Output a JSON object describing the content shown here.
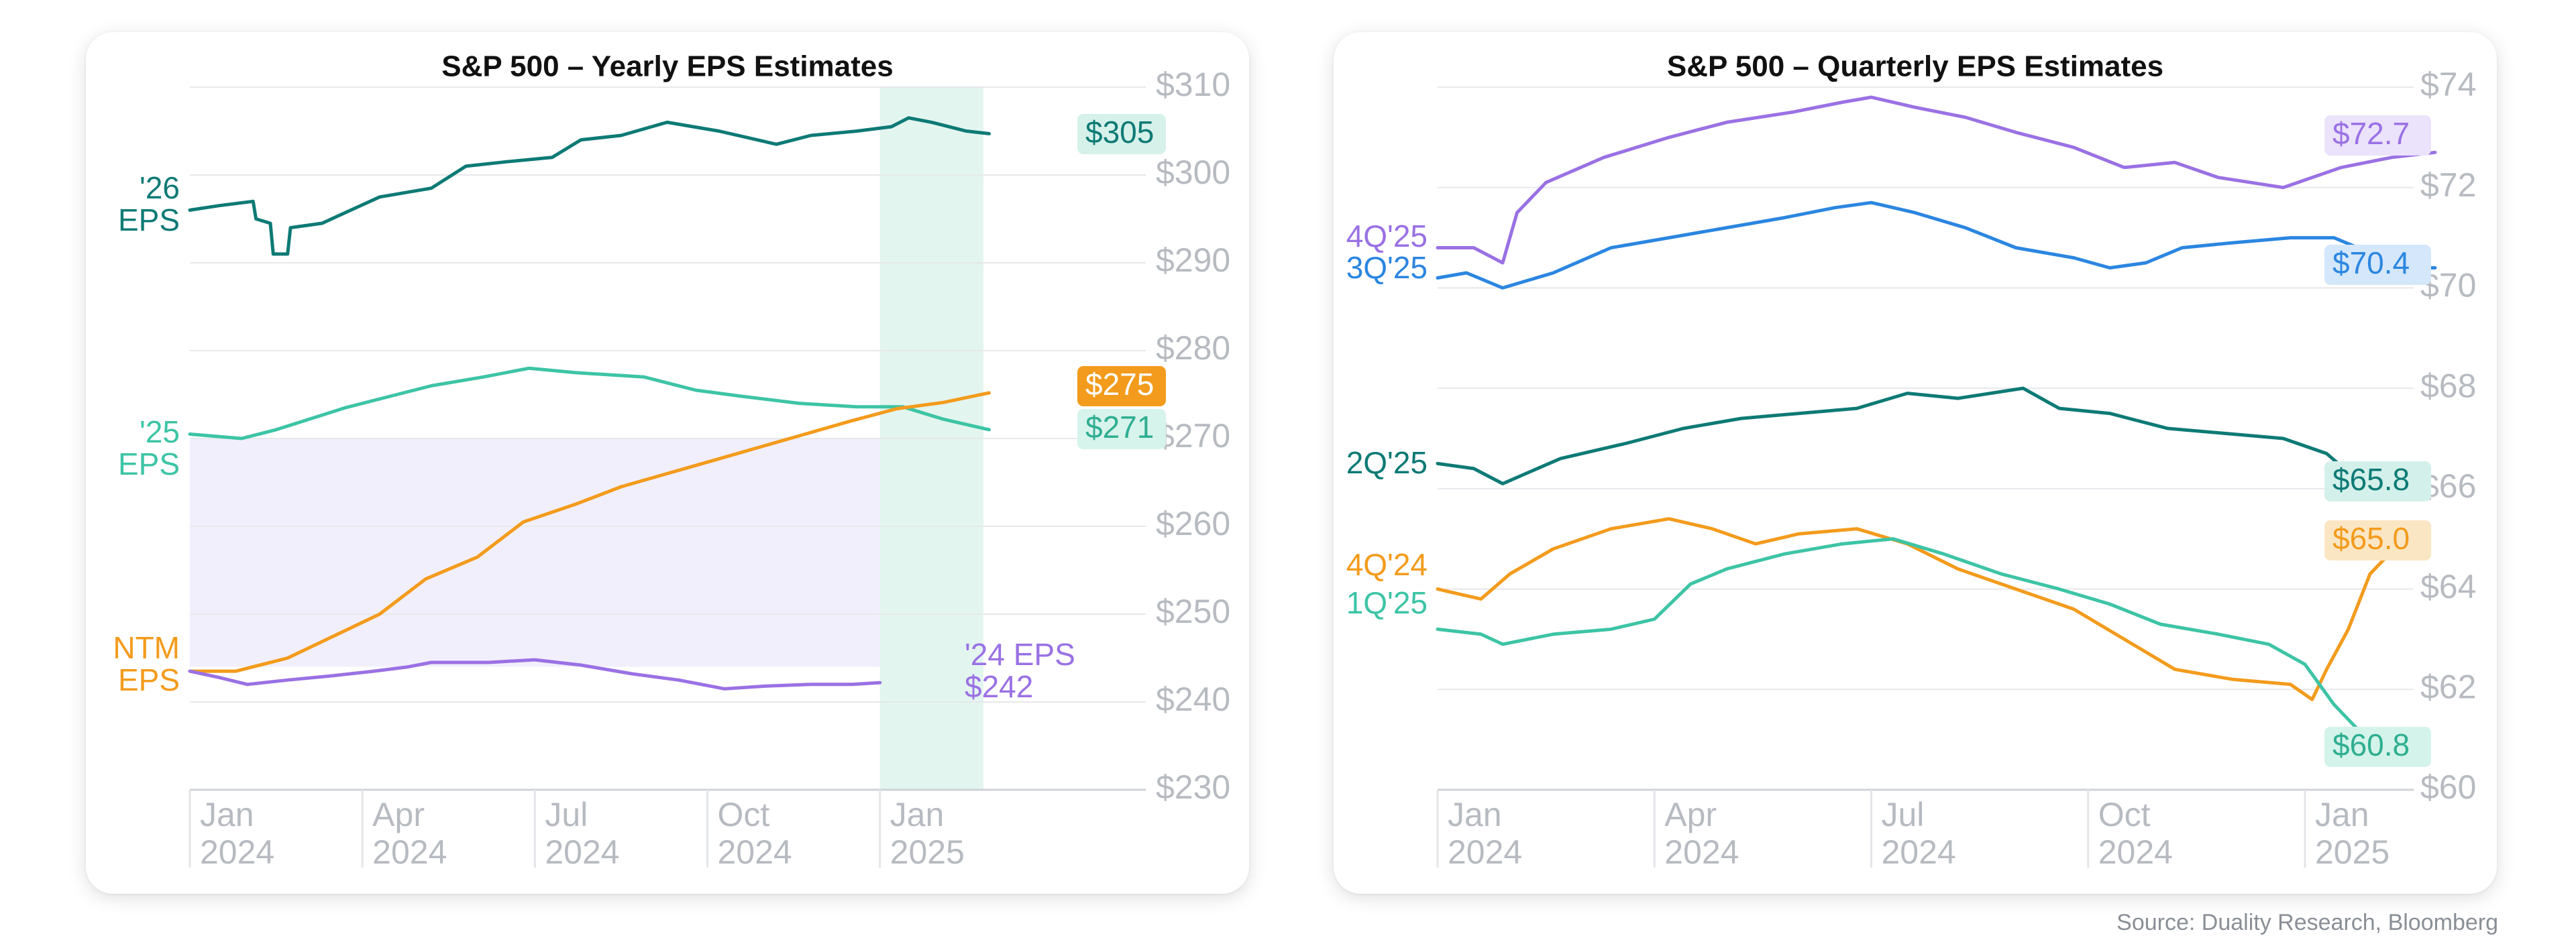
{
  "source": "Source: Duality Research, Bloomberg",
  "chart_data": [
    {
      "id": "yearly",
      "type": "line",
      "title": "S&P 500 – Yearly EPS Estimates",
      "ylim": [
        230,
        310
      ],
      "y_ticks": [
        230,
        240,
        250,
        260,
        270,
        280,
        290,
        300,
        310
      ],
      "y_tick_labels": [
        "$230",
        "$240",
        "$250",
        "$260",
        "$270",
        "$280",
        "$290",
        "$300",
        "$310"
      ],
      "x_domain": [
        0,
        16.6
      ],
      "x_ticks": [
        {
          "pos": 0,
          "line1": "Jan",
          "line2": "2024"
        },
        {
          "pos": 3,
          "line1": "Apr",
          "line2": "2024"
        },
        {
          "pos": 6,
          "line1": "Jul",
          "line2": "2024"
        },
        {
          "pos": 9,
          "line1": "Oct",
          "line2": "2024"
        },
        {
          "pos": 12,
          "line1": "Jan",
          "line2": "2025"
        }
      ],
      "grid": true,
      "shaded_regions": [
        {
          "x": [
            12.0,
            13.8
          ],
          "y": [
            230,
            310
          ],
          "color": "#d9f2ea"
        },
        {
          "x": [
            0.0,
            12.0
          ],
          "y": [
            244,
            270
          ],
          "color": "#eeeafb"
        }
      ],
      "series": [
        {
          "name": "'26 EPS",
          "color": "#0d7a75",
          "label_lines": [
            "'26",
            "EPS"
          ],
          "end_badge": "$305",
          "badge_bg": "#d6f1ea",
          "badge_text": "#0d7a75",
          "points": [
            [
              0,
              296
            ],
            [
              0.5,
              296.5
            ],
            [
              1.1,
              297
            ],
            [
              1.15,
              295
            ],
            [
              1.4,
              294.5
            ],
            [
              1.45,
              291
            ],
            [
              1.7,
              291
            ],
            [
              1.75,
              294
            ],
            [
              2.3,
              294.5
            ],
            [
              2.8,
              296
            ],
            [
              3.3,
              297.5
            ],
            [
              4.2,
              298.5
            ],
            [
              4.8,
              301
            ],
            [
              5.5,
              301.5
            ],
            [
              6.3,
              302
            ],
            [
              6.8,
              304
            ],
            [
              7.5,
              304.5
            ],
            [
              8.3,
              306
            ],
            [
              9.2,
              305
            ],
            [
              10.2,
              303.5
            ],
            [
              10.8,
              304.5
            ],
            [
              11.6,
              305
            ],
            [
              12.2,
              305.5
            ],
            [
              12.5,
              306.5
            ],
            [
              12.9,
              306
            ],
            [
              13.5,
              305
            ],
            [
              13.9,
              304.7
            ]
          ]
        },
        {
          "name": "'25 EPS",
          "color": "#3dc4a5",
          "label_lines": [
            "'25",
            "EPS"
          ],
          "end_badge": "$271",
          "badge_bg": "#d6f3ec",
          "badge_text": "#2fae91",
          "points": [
            [
              0,
              270.5
            ],
            [
              0.9,
              270
            ],
            [
              1.5,
              271
            ],
            [
              2.7,
              273.5
            ],
            [
              3.6,
              275
            ],
            [
              4.2,
              276
            ],
            [
              5.1,
              277
            ],
            [
              5.9,
              278
            ],
            [
              6.7,
              277.5
            ],
            [
              7.9,
              277
            ],
            [
              8.8,
              275.5
            ],
            [
              9.6,
              274.8
            ],
            [
              10.6,
              274
            ],
            [
              11.6,
              273.6
            ],
            [
              12.4,
              273.6
            ],
            [
              13.1,
              272.2
            ],
            [
              13.9,
              271
            ]
          ]
        },
        {
          "name": "NTM EPS",
          "color": "#f39b1c",
          "label_lines": [
            "NTM",
            "EPS"
          ],
          "end_badge": "$275",
          "badge_bg": "#f39b1c",
          "badge_text": "#ffffff",
          "points": [
            [
              0,
              243.5
            ],
            [
              0.8,
              243.5
            ],
            [
              1.7,
              245
            ],
            [
              2.5,
              247.5
            ],
            [
              3.3,
              250
            ],
            [
              4.1,
              254
            ],
            [
              5.0,
              256.5
            ],
            [
              5.8,
              260.5
            ],
            [
              6.7,
              262.5
            ],
            [
              7.5,
              264.5
            ],
            [
              8.3,
              266
            ],
            [
              9.1,
              267.5
            ],
            [
              9.9,
              269
            ],
            [
              10.7,
              270.5
            ],
            [
              11.5,
              272
            ],
            [
              12.3,
              273.4
            ],
            [
              13.1,
              274.1
            ],
            [
              13.9,
              275.2
            ]
          ]
        },
        {
          "name": "'24 EPS",
          "color": "#9a71e4",
          "label_lines": [
            "'24 EPS",
            "$242"
          ],
          "end_badge": "",
          "badge_bg": "",
          "badge_text": "",
          "points": [
            [
              0,
              243.5
            ],
            [
              0.5,
              242.8
            ],
            [
              1.0,
              242
            ],
            [
              1.7,
              242.5
            ],
            [
              2.5,
              243
            ],
            [
              3.2,
              243.5
            ],
            [
              3.8,
              244
            ],
            [
              4.2,
              244.5
            ],
            [
              5.2,
              244.5
            ],
            [
              6.0,
              244.8
            ],
            [
              6.8,
              244.2
            ],
            [
              7.7,
              243.2
            ],
            [
              8.5,
              242.5
            ],
            [
              9.3,
              241.5
            ],
            [
              10.0,
              241.8
            ],
            [
              10.8,
              242
            ],
            [
              11.5,
              242
            ],
            [
              12.0,
              242.2
            ]
          ]
        }
      ]
    },
    {
      "id": "quarterly",
      "type": "line",
      "title": "S&P 500 – Quarterly EPS Estimates",
      "ylim": [
        60,
        74
      ],
      "y_ticks": [
        60,
        62,
        64,
        66,
        68,
        70,
        72,
        74
      ],
      "y_tick_labels": [
        "$60",
        "$62",
        "$64",
        "$66",
        "$68",
        "$70",
        "$72",
        "$74"
      ],
      "x_domain": [
        0,
        14.2
      ],
      "x_ticks": [
        {
          "pos": 0,
          "line1": "Jan",
          "line2": "2024"
        },
        {
          "pos": 3,
          "line1": "Apr",
          "line2": "2024"
        },
        {
          "pos": 6,
          "line1": "Jul",
          "line2": "2024"
        },
        {
          "pos": 9,
          "line1": "Oct",
          "line2": "2024"
        },
        {
          "pos": 12,
          "line1": "Jan",
          "line2": "2025"
        }
      ],
      "grid": true,
      "shaded_regions": [],
      "series": [
        {
          "name": "4Q'25",
          "color": "#9a71e4",
          "label_lines": [
            "4Q'25"
          ],
          "end_badge": "$72.7",
          "badge_bg": "#ebe2fb",
          "badge_text": "#9a71e4",
          "points": [
            [
              0,
              70.8
            ],
            [
              0.5,
              70.8
            ],
            [
              0.9,
              70.5
            ],
            [
              1.1,
              71.5
            ],
            [
              1.5,
              72.1
            ],
            [
              2.3,
              72.6
            ],
            [
              3.2,
              73
            ],
            [
              4.0,
              73.3
            ],
            [
              4.9,
              73.5
            ],
            [
              5.6,
              73.7
            ],
            [
              6.0,
              73.8
            ],
            [
              6.6,
              73.6
            ],
            [
              7.3,
              73.4
            ],
            [
              8.0,
              73.1
            ],
            [
              8.8,
              72.8
            ],
            [
              9.5,
              72.4
            ],
            [
              10.2,
              72.5
            ],
            [
              10.8,
              72.2
            ],
            [
              11.7,
              72
            ],
            [
              12.5,
              72.4
            ],
            [
              13.2,
              72.6
            ],
            [
              13.8,
              72.7
            ]
          ]
        },
        {
          "name": "3Q'25",
          "color": "#2b86e0",
          "label_lines": [
            "3Q'25"
          ],
          "end_badge": "$70.4",
          "badge_bg": "#d4e7fb",
          "badge_text": "#2b86e0",
          "points": [
            [
              0,
              70.2
            ],
            [
              0.4,
              70.3
            ],
            [
              0.9,
              70
            ],
            [
              1.6,
              70.3
            ],
            [
              2.4,
              70.8
            ],
            [
              3.2,
              71
            ],
            [
              4.0,
              71.2
            ],
            [
              4.8,
              71.4
            ],
            [
              5.5,
              71.6
            ],
            [
              6.0,
              71.7
            ],
            [
              6.6,
              71.5
            ],
            [
              7.3,
              71.2
            ],
            [
              8.0,
              70.8
            ],
            [
              8.8,
              70.6
            ],
            [
              9.3,
              70.4
            ],
            [
              9.8,
              70.5
            ],
            [
              10.3,
              70.8
            ],
            [
              11.0,
              70.9
            ],
            [
              11.8,
              71
            ],
            [
              12.4,
              71
            ],
            [
              12.9,
              70.7
            ],
            [
              13.4,
              70.4
            ],
            [
              13.8,
              70.4
            ]
          ]
        },
        {
          "name": "2Q'25",
          "color": "#0d7a75",
          "label_lines": [
            "2Q'25"
          ],
          "end_badge": "$65.8",
          "badge_bg": "#d4f0ea",
          "badge_text": "#0d7a75",
          "points": [
            [
              0,
              66.5
            ],
            [
              0.5,
              66.4
            ],
            [
              0.9,
              66.1
            ],
            [
              1.7,
              66.6
            ],
            [
              2.6,
              66.9
            ],
            [
              3.4,
              67.2
            ],
            [
              4.2,
              67.4
            ],
            [
              5.0,
              67.5
            ],
            [
              5.8,
              67.6
            ],
            [
              6.5,
              67.9
            ],
            [
              7.2,
              67.8
            ],
            [
              8.1,
              68
            ],
            [
              8.6,
              67.6
            ],
            [
              9.3,
              67.5
            ],
            [
              10.1,
              67.2
            ],
            [
              10.9,
              67.1
            ],
            [
              11.7,
              67
            ],
            [
              12.3,
              66.7
            ],
            [
              12.7,
              66.2
            ],
            [
              13.2,
              65.9
            ],
            [
              13.6,
              65.8
            ]
          ]
        },
        {
          "name": "4Q'24",
          "color": "#f39b1c",
          "label_lines": [
            "4Q'24"
          ],
          "end_badge": "$65.0",
          "badge_bg": "#fbe6c4",
          "badge_text": "#f39b1c",
          "points": [
            [
              0,
              64
            ],
            [
              0.6,
              63.8
            ],
            [
              1.0,
              64.3
            ],
            [
              1.6,
              64.8
            ],
            [
              2.4,
              65.2
            ],
            [
              3.2,
              65.4
            ],
            [
              3.8,
              65.2
            ],
            [
              4.4,
              64.9
            ],
            [
              5.0,
              65.1
            ],
            [
              5.8,
              65.2
            ],
            [
              6.5,
              64.9
            ],
            [
              7.2,
              64.4
            ],
            [
              8.0,
              64
            ],
            [
              8.8,
              63.6
            ],
            [
              9.5,
              63
            ],
            [
              10.2,
              62.4
            ],
            [
              11.0,
              62.2
            ],
            [
              11.8,
              62.1
            ],
            [
              12.1,
              61.8
            ],
            [
              12.3,
              62.4
            ],
            [
              12.6,
              63.2
            ],
            [
              12.9,
              64.3
            ],
            [
              13.3,
              64.9
            ],
            [
              13.7,
              65
            ]
          ]
        },
        {
          "name": "1Q'25",
          "color": "#3dc4a5",
          "label_lines": [
            "1Q'25"
          ],
          "end_badge": "$60.8",
          "badge_bg": "#d4f3ea",
          "badge_text": "#2fae91",
          "points": [
            [
              0,
              63.2
            ],
            [
              0.6,
              63.1
            ],
            [
              0.9,
              62.9
            ],
            [
              1.6,
              63.1
            ],
            [
              2.4,
              63.2
            ],
            [
              3.0,
              63.4
            ],
            [
              3.5,
              64.1
            ],
            [
              4.0,
              64.4
            ],
            [
              4.8,
              64.7
            ],
            [
              5.6,
              64.9
            ],
            [
              6.3,
              65
            ],
            [
              7.0,
              64.7
            ],
            [
              7.8,
              64.3
            ],
            [
              8.6,
              64
            ],
            [
              9.3,
              63.7
            ],
            [
              10.0,
              63.3
            ],
            [
              10.8,
              63.1
            ],
            [
              11.5,
              62.9
            ],
            [
              12.0,
              62.5
            ],
            [
              12.4,
              61.7
            ],
            [
              12.8,
              61.1
            ],
            [
              13.3,
              60.8
            ],
            [
              13.6,
              60.8
            ]
          ]
        }
      ]
    }
  ]
}
